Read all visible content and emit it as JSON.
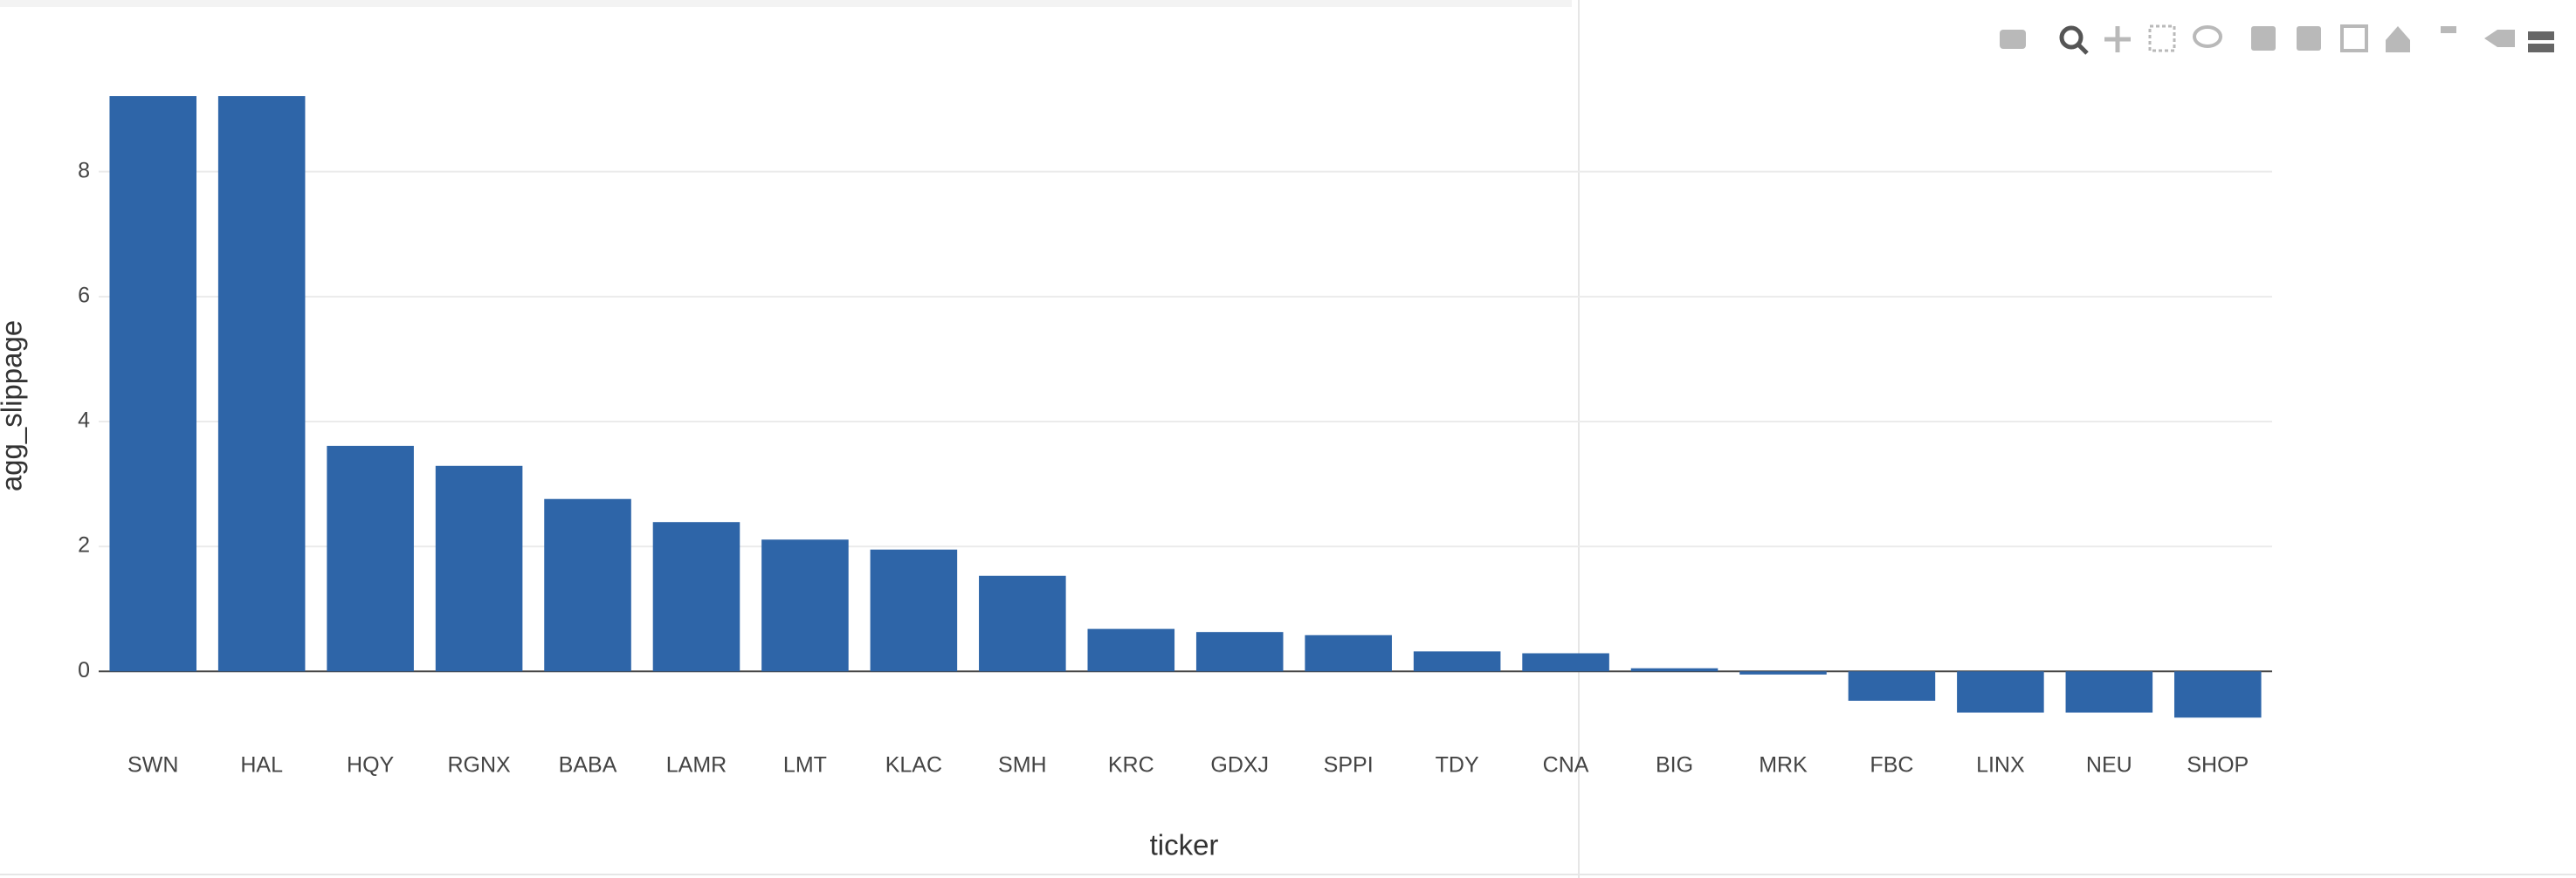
{
  "chart_data": {
    "type": "bar",
    "x_label": "ticker",
    "y_label": "agg_slippage",
    "categories": [
      "SWN",
      "HAL",
      "HQY",
      "RGNX",
      "BABA",
      "LAMR",
      "LMT",
      "KLAC",
      "SMH",
      "KRC",
      "GDXJ",
      "SPPI",
      "TDY",
      "CNA",
      "BIG",
      "MRK",
      "FBC",
      "LINX",
      "NEU",
      "SHOP"
    ],
    "values": [
      9.21,
      9.21,
      3.61,
      3.29,
      2.76,
      2.39,
      2.11,
      1.95,
      1.53,
      0.68,
      0.63,
      0.58,
      0.32,
      0.29,
      0.05,
      -0.05,
      -0.47,
      -0.66,
      -0.66,
      -0.74
    ],
    "color": "#2e65a8",
    "ylim": [
      -1.1,
      9.7
    ],
    "yticks": [
      0,
      2,
      4,
      6,
      8
    ],
    "grid": true
  }
}
